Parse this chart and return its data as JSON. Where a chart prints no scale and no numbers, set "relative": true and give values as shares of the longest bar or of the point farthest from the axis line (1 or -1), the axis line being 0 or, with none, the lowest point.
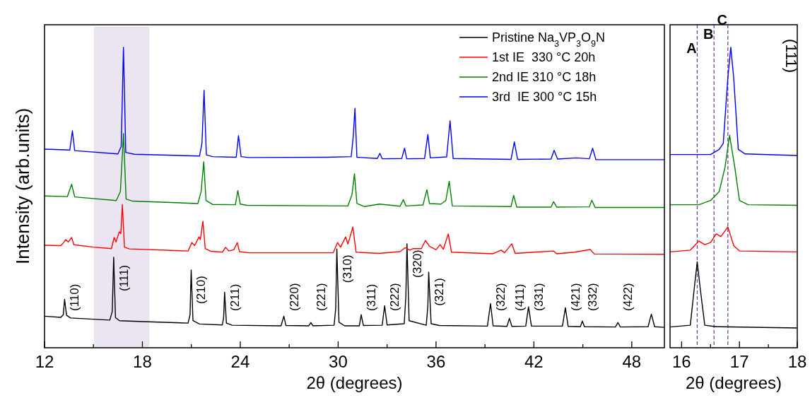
{
  "chart_data": [
    {
      "type": "line",
      "relative": true,
      "xlabel": "2θ (degrees)",
      "ylabel": "Intensity (arb.units)",
      "xlim": [
        12,
        50
      ],
      "xticks": [
        12,
        {
          "value": 15,
          "label": null
        },
        18,
        {
          "value": 21,
          "label": null
        },
        24,
        {
          "value": 27,
          "label": null
        },
        30,
        {
          "value": 33,
          "label": null
        },
        36,
        {
          "value": 39,
          "label": null
        },
        42,
        {
          "value": 45,
          "label": null
        },
        48
      ],
      "tick_labels": "x",
      "legend": "top right",
      "bands": [
        {
          "axis": "x",
          "from": 15.03,
          "to": 18.43,
          "color": "#ebe5f1"
        }
      ],
      "series": [
        {
          "name": "Pristine Na$_{3}$VP$_{3}$O$_{9}$N",
          "color": "#000000",
          "x": [
            12.0,
            13.0,
            13.15,
            13.23,
            13.35,
            13.6,
            15.0,
            16.0,
            16.15,
            16.24,
            16.35,
            16.6,
            18.0,
            20.8,
            20.92,
            20.99,
            21.1,
            21.5,
            22.9,
            22.98,
            23.04,
            23.15,
            23.5,
            26.5,
            26.67,
            26.8,
            28.2,
            28.33,
            28.45,
            29.75,
            29.85,
            29.92,
            30.05,
            30.4,
            31.3,
            31.41,
            31.55,
            32.7,
            32.85,
            33.0,
            34.05,
            34.15,
            34.22,
            34.35,
            35.4,
            35.5,
            35.55,
            35.7,
            36.2,
            39.15,
            39.34,
            39.5,
            40.35,
            40.5,
            40.65,
            41.5,
            41.67,
            41.85,
            43.75,
            43.93,
            44.1,
            44.85,
            44.97,
            45.1,
            47.0,
            47.15,
            47.3,
            49.0,
            49.2,
            49.4,
            50.0
          ],
          "values": [
            0.105,
            0.101,
            0.11,
            0.161,
            0.108,
            0.099,
            0.095,
            0.092,
            0.12,
            0.301,
            0.1,
            0.09,
            0.087,
            0.082,
            0.11,
            0.259,
            0.09,
            0.079,
            0.076,
            0.1,
            0.185,
            0.082,
            0.075,
            0.073,
            0.105,
            0.074,
            0.073,
            0.084,
            0.073,
            0.075,
            0.13,
            0.329,
            0.085,
            0.073,
            0.073,
            0.11,
            0.074,
            0.075,
            0.14,
            0.076,
            0.08,
            0.17,
            0.346,
            0.09,
            0.075,
            0.14,
            0.252,
            0.08,
            0.074,
            0.072,
            0.147,
            0.073,
            0.071,
            0.098,
            0.071,
            0.072,
            0.136,
            0.072,
            0.072,
            0.133,
            0.071,
            0.07,
            0.089,
            0.07,
            0.069,
            0.084,
            0.069,
            0.07,
            0.112,
            0.07,
            0.068
          ]
        },
        {
          "name": "1st IE  330 °C 20h",
          "color": "#ff0000",
          "x": [
            12.0,
            13.0,
            13.2,
            13.3,
            13.45,
            13.66,
            13.8,
            15.0,
            16.1,
            16.27,
            16.38,
            16.58,
            16.68,
            16.77,
            16.9,
            17.2,
            20.8,
            21.03,
            21.2,
            21.47,
            21.55,
            21.71,
            21.85,
            22.2,
            22.9,
            23.1,
            23.3,
            23.6,
            23.82,
            23.95,
            24.5,
            29.7,
            29.96,
            30.15,
            30.46,
            30.6,
            30.9,
            31.1,
            32.5,
            33.8,
            34.1,
            34.4,
            34.6,
            35.1,
            35.35,
            35.6,
            36.0,
            36.25,
            36.45,
            36.75,
            36.95,
            39.5,
            40.0,
            40.2,
            40.65,
            40.85,
            43.2,
            43.4,
            44.5,
            45.45,
            45.7,
            50.0
          ],
          "values": [
            0.341,
            0.34,
            0.352,
            0.36,
            0.352,
            0.367,
            0.343,
            0.335,
            0.33,
            0.367,
            0.352,
            0.386,
            0.38,
            0.477,
            0.335,
            0.329,
            0.322,
            0.35,
            0.34,
            0.369,
            0.36,
            0.421,
            0.33,
            0.321,
            0.318,
            0.334,
            0.322,
            0.326,
            0.35,
            0.32,
            0.316,
            0.316,
            0.35,
            0.335,
            0.369,
            0.345,
            0.402,
            0.318,
            0.314,
            0.32,
            0.333,
            0.325,
            0.33,
            0.33,
            0.357,
            0.338,
            0.326,
            0.343,
            0.328,
            0.379,
            0.318,
            0.313,
            0.325,
            0.316,
            0.346,
            0.314,
            0.322,
            0.313,
            0.318,
            0.327,
            0.312,
            0.311
          ]
        },
        {
          "name": "2nd IE 310 °C 18h",
          "color": "#008000",
          "x": [
            12.0,
            13.4,
            13.66,
            13.85,
            16.4,
            16.65,
            16.84,
            17.0,
            17.4,
            21.4,
            21.6,
            21.76,
            21.9,
            22.3,
            23.7,
            23.85,
            24.0,
            24.4,
            30.6,
            30.85,
            31.0,
            31.15,
            31.6,
            32.52,
            33.8,
            34.0,
            34.15,
            35.2,
            35.44,
            35.6,
            36.3,
            36.6,
            36.81,
            37.0,
            40.6,
            40.76,
            40.95,
            43.05,
            43.21,
            43.4,
            45.4,
            45.55,
            45.75,
            50.0
          ],
          "values": [
            0.505,
            0.503,
            0.544,
            0.502,
            0.49,
            0.52,
            0.713,
            0.495,
            0.488,
            0.48,
            0.52,
            0.619,
            0.49,
            0.477,
            0.476,
            0.523,
            0.478,
            0.474,
            0.472,
            0.51,
            0.579,
            0.48,
            0.47,
            0.478,
            0.471,
            0.493,
            0.472,
            0.475,
            0.526,
            0.48,
            0.478,
            0.49,
            0.554,
            0.472,
            0.47,
            0.507,
            0.468,
            0.468,
            0.486,
            0.468,
            0.469,
            0.491,
            0.467,
            0.467
          ]
        },
        {
          "name": "3rd  IE 300 °C 15h",
          "color": "#0000ff",
          "x": [
            12.0,
            13.55,
            13.71,
            13.85,
            16.5,
            16.7,
            16.84,
            16.98,
            17.5,
            21.5,
            21.65,
            21.78,
            21.92,
            22.3,
            23.75,
            23.89,
            24.05,
            24.5,
            29.3,
            30.8,
            30.92,
            31.03,
            31.15,
            32.4,
            32.56,
            32.7,
            33.9,
            34.07,
            34.2,
            35.3,
            35.5,
            35.65,
            36.65,
            36.86,
            37.05,
            40.6,
            40.8,
            41.0,
            43.05,
            43.24,
            43.45,
            44.6,
            45.4,
            45.6,
            45.8,
            50.0
          ],
          "values": [
            0.661,
            0.658,
            0.722,
            0.656,
            0.645,
            0.67,
            1.0,
            0.65,
            0.644,
            0.638,
            0.68,
            0.857,
            0.642,
            0.636,
            0.634,
            0.706,
            0.636,
            0.633,
            0.634,
            0.636,
            0.7,
            0.797,
            0.634,
            0.63,
            0.647,
            0.629,
            0.63,
            0.664,
            0.629,
            0.63,
            0.71,
            0.632,
            0.635,
            0.755,
            0.63,
            0.627,
            0.685,
            0.627,
            0.628,
            0.657,
            0.628,
            0.632,
            0.629,
            0.664,
            0.626,
            0.626
          ]
        }
      ],
      "annotations": [
        {
          "text": "(110)",
          "x": 13.23,
          "y": 0.161
        },
        {
          "text": "(111)",
          "x": 16.24,
          "y": 0.301
        },
        {
          "text": "(210)",
          "x": 20.99,
          "y": 0.259
        },
        {
          "text": "(211)",
          "x": 23.04,
          "y": 0.185
        },
        {
          "text": "(220)",
          "x": 26.67,
          "y": 0.105
        },
        {
          "text": "(221)",
          "x": 28.33,
          "y": 0.084
        },
        {
          "text": "(310)",
          "x": 29.92,
          "y": 0.329
        },
        {
          "text": "(311)",
          "x": 31.41,
          "y": 0.11
        },
        {
          "text": "(222)",
          "x": 32.85,
          "y": 0.14
        },
        {
          "text": "(320)",
          "x": 34.22,
          "y": 0.346
        },
        {
          "text": "(321)",
          "x": 35.55,
          "y": 0.252
        },
        {
          "text": "(322)",
          "x": 39.34,
          "y": 0.147
        },
        {
          "text": "(411)",
          "x": 40.5,
          "y": 0.098
        },
        {
          "text": "(331)",
          "x": 41.67,
          "y": 0.136
        },
        {
          "text": "(421)",
          "x": 43.93,
          "y": 0.133
        },
        {
          "text": "(332)",
          "x": 44.97,
          "y": 0.089
        },
        {
          "text": "(422)",
          "x": 47.15,
          "y": 0.084
        }
      ]
    },
    {
      "type": "line",
      "relative": true,
      "xlabel": "2θ (degrees)",
      "xlim": [
        15.8,
        18.0
      ],
      "xticks": [
        16,
        {
          "value": 16.5,
          "label": null
        },
        17,
        {
          "value": 17.5,
          "label": null
        },
        18
      ],
      "tick_labels": "x",
      "ref_lines": [
        {
          "axis": "x",
          "value": 16.27,
          "label": "A",
          "color": "#7030a0",
          "line_style": "dashed"
        },
        {
          "axis": "x",
          "value": 16.56,
          "label": "B",
          "color": "#7030a0",
          "line_style": "dashed"
        },
        {
          "axis": "x",
          "value": 16.8,
          "label": "C",
          "color": "#7030a0",
          "line_style": "dashed"
        }
      ],
      "series": [
        {
          "color": "#000000",
          "x": [
            15.8,
            16.15,
            16.22,
            16.27,
            16.32,
            16.4,
            16.6,
            18.0
          ],
          "values": [
            0.069,
            0.075,
            0.2,
            0.286,
            0.2,
            0.075,
            0.07,
            0.066
          ]
        },
        {
          "color": "#ff0000",
          "x": [
            15.8,
            16.15,
            16.3,
            16.4,
            16.5,
            16.6,
            16.68,
            16.8,
            16.9,
            17.0,
            18.0
          ],
          "values": [
            0.319,
            0.325,
            0.355,
            0.343,
            0.35,
            0.379,
            0.37,
            0.402,
            0.34,
            0.322,
            0.319
          ]
        },
        {
          "color": "#008000",
          "x": [
            15.8,
            16.3,
            16.5,
            16.65,
            16.75,
            16.83,
            16.92,
            17.0,
            17.15,
            18.0
          ],
          "values": [
            0.476,
            0.476,
            0.49,
            0.52,
            0.6,
            0.707,
            0.6,
            0.49,
            0.476,
            0.474
          ]
        },
        {
          "color": "#0000ff",
          "x": [
            15.8,
            16.5,
            16.65,
            16.72,
            16.8,
            16.85,
            16.9,
            16.98,
            17.1,
            18.0
          ],
          "values": [
            0.643,
            0.643,
            0.66,
            0.68,
            0.9,
            1.0,
            0.9,
            0.66,
            0.645,
            0.64
          ]
        }
      ],
      "annotations": [
        "(111)"
      ]
    }
  ]
}
